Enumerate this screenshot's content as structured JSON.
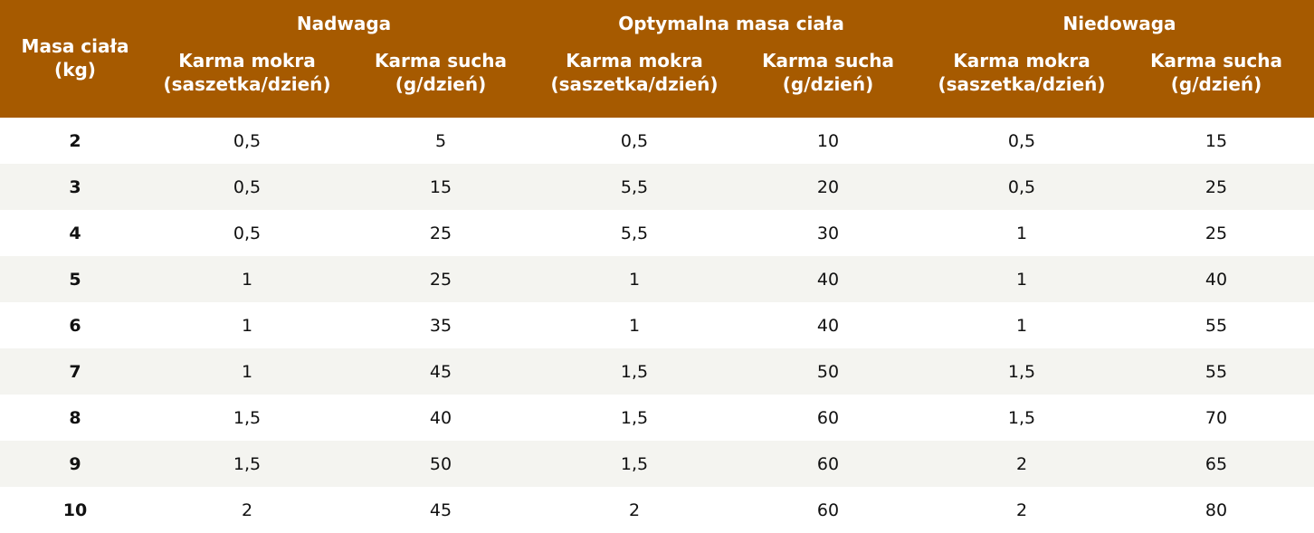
{
  "table": {
    "corner": "Masa ciała\n(kg)",
    "groups": [
      "Nadwaga",
      "Optymalna masa ciała",
      "Niedowaga"
    ],
    "subheaders": [
      "Karma mokra\n(saszetka/dzień)",
      "Karma sucha\n(g/dzień)"
    ],
    "rows": [
      [
        "2",
        "0,5",
        "5",
        "0,5",
        "10",
        "0,5",
        "15"
      ],
      [
        "3",
        "0,5",
        "15",
        "5,5",
        "20",
        "0,5",
        "25"
      ],
      [
        "4",
        "0,5",
        "25",
        "5,5",
        "30",
        "1",
        "25"
      ],
      [
        "5",
        "1",
        "25",
        "1",
        "40",
        "1",
        "40"
      ],
      [
        "6",
        "1",
        "35",
        "1",
        "40",
        "1",
        "55"
      ],
      [
        "7",
        "1",
        "45",
        "1,5",
        "50",
        "1,5",
        "55"
      ],
      [
        "8",
        "1,5",
        "40",
        "1,5",
        "60",
        "1,5",
        "70"
      ],
      [
        "9",
        "1,5",
        "50",
        "1,5",
        "60",
        "2",
        "65"
      ],
      [
        "10",
        "2",
        "45",
        "2",
        "60",
        "2",
        "80"
      ]
    ]
  }
}
